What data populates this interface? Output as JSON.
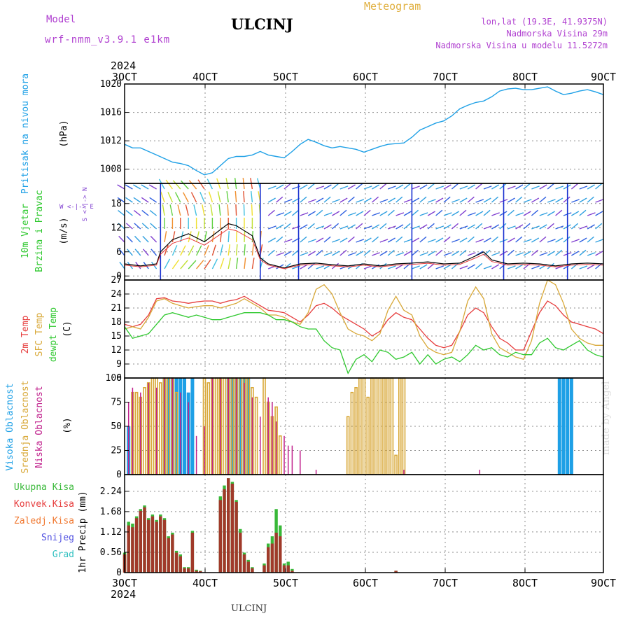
{
  "header": {
    "model_label": "Model",
    "model_name": "wrf-nmm_v3.9.1 e1km",
    "station": "ULCINJ",
    "product": "Meteogram",
    "lonlat": "lon,lat (19.3E, 41.9375N)",
    "elevation": "Nadmorska Visina 29m",
    "model_elevation": "Nadmorska Visina u modelu 11.5272m",
    "credit": "made by Angel",
    "footer_station": "ULCINJ"
  },
  "colors": {
    "pressure": "#1ea0e6",
    "temp2m": "#e63c3c",
    "sfctemp": "#d8a838",
    "dewpt": "#2ec82e",
    "cloud_high": "#1ea0e6",
    "cloud_mid": "#d8a838",
    "cloud_low": "#c0208c",
    "precip_total": "#38b838",
    "precip_conv": "#a03a2a",
    "grid": "#8c8c8c",
    "wind_purple": "#8040d0"
  },
  "time_axis": {
    "year": "2024",
    "ticks": [
      "3OCT",
      "4OCT",
      "5OCT",
      "6OCT",
      "7OCT",
      "8OCT",
      "9OCT"
    ]
  },
  "panels": {
    "pressure": {
      "label": "Pritisak na nivou mora",
      "unit": "(hPa)"
    },
    "wind": {
      "label1": "10m Vjetar",
      "label2": "Brzina i Pravac",
      "unit": "(m/s)",
      "compass": "W <-|-> E",
      "compass_ns": "S <-|-> N"
    },
    "temp": {
      "label1": "2m Temp",
      "label2": "SFC Temp",
      "label3": "dewpt Temp",
      "unit": "(C)"
    },
    "cloud": {
      "label1": "Visoka Oblacnost",
      "label2": "Srednja Oblacnost",
      "label3": "Niska Oblacnost",
      "unit": "(%)"
    },
    "precip": {
      "legend": [
        "Ukupna Kisa",
        "Konvek.Kisa",
        "Zaledj.Kisa",
        "Snijeg",
        "Grad"
      ],
      "legend_colors": [
        "#38b838",
        "#e63c3c",
        "#f07830",
        "#5050e0",
        "#30c0c0"
      ],
      "unit": "1hr Precip (mm)"
    }
  },
  "chart_data": [
    {
      "type": "line",
      "panel": "pressure",
      "xlabel": "",
      "ylabel": "Pritisak na nivou mora (hPa)",
      "ylim": [
        1006,
        1020
      ],
      "yticks": [
        "1008",
        "1012",
        "1016",
        "1020"
      ],
      "x": [
        3.0,
        3.1,
        3.2,
        3.3,
        3.4,
        3.5,
        3.6,
        3.7,
        3.8,
        3.9,
        4.0,
        4.1,
        4.2,
        4.3,
        4.4,
        4.5,
        4.6,
        4.7,
        4.8,
        4.9,
        5.0,
        5.1,
        5.2,
        5.3,
        5.4,
        5.5,
        5.6,
        5.7,
        5.8,
        5.9,
        6.0,
        6.1,
        6.2,
        6.3,
        6.4,
        6.5,
        6.6,
        6.7,
        6.8,
        6.9,
        7.0,
        7.1,
        7.2,
        7.3,
        7.4,
        7.5,
        7.6,
        7.7,
        7.8,
        7.9,
        8.0,
        8.1,
        8.2,
        8.3,
        8.4,
        8.5,
        8.6,
        8.7,
        8.8,
        8.9,
        9.0
      ],
      "series": [
        {
          "name": "",
          "values": [
            1011.5,
            1011.0,
            1011.0,
            1010.5,
            1010.0,
            1009.5,
            1009.0,
            1008.8,
            1008.5,
            1007.8,
            1007.2,
            1007.5,
            1008.5,
            1009.5,
            1009.8,
            1009.8,
            1010.0,
            1010.5,
            1010.0,
            1009.8,
            1009.6,
            1010.5,
            1011.5,
            1012.2,
            1011.8,
            1011.3,
            1011.0,
            1011.2,
            1011.0,
            1010.8,
            1010.4,
            1010.8,
            1011.2,
            1011.5,
            1011.6,
            1011.7,
            1012.5,
            1013.5,
            1014.0,
            1014.5,
            1014.8,
            1015.5,
            1016.5,
            1017.0,
            1017.4,
            1017.6,
            1018.2,
            1019.0,
            1019.3,
            1019.4,
            1019.2,
            1019.2,
            1019.4,
            1019.6,
            1019.0,
            1018.5,
            1018.7,
            1019.0,
            1019.2,
            1018.9,
            1018.5
          ]
        }
      ]
    },
    {
      "type": "line",
      "panel": "wind",
      "xlabel": "",
      "ylabel": "10m Vjetar Brzina i Pravac (m/s)",
      "ylim": [
        -1,
        23
      ],
      "yticks": [
        "0",
        "6",
        "12",
        "18"
      ],
      "x": [
        3.0,
        3.2,
        3.4,
        3.45,
        3.6,
        3.8,
        4.0,
        4.2,
        4.3,
        4.4,
        4.6,
        4.7,
        4.8,
        5.0,
        5.2,
        5.4,
        5.6,
        5.8,
        6.0,
        6.2,
        6.4,
        6.6,
        6.8,
        7.0,
        7.2,
        7.4,
        7.5,
        7.6,
        7.8,
        8.0,
        8.2,
        8.4,
        8.6,
        8.8,
        9.0
      ],
      "series": [
        {
          "name": "",
          "values": [
            3.0,
            2.5,
            3.0,
            6.0,
            9.0,
            10.5,
            8.5,
            11.5,
            13.0,
            12.5,
            10.0,
            4.5,
            3.0,
            2.0,
            3.0,
            3.2,
            2.8,
            2.5,
            3.0,
            2.5,
            3.0,
            3.2,
            3.5,
            3.0,
            3.2,
            5.0,
            6.0,
            4.0,
            3.0,
            3.2,
            3.0,
            2.5,
            3.0,
            3.2,
            3.0
          ]
        }
      ]
    },
    {
      "type": "line",
      "panel": "temperature",
      "xlabel": "",
      "ylabel": "(C)",
      "ylim": [
        6,
        27
      ],
      "yticks": [
        "6",
        "9",
        "12",
        "15",
        "18",
        "21",
        "24",
        "27"
      ],
      "x": [
        3.0,
        3.1,
        3.2,
        3.3,
        3.4,
        3.5,
        3.6,
        3.7,
        3.8,
        3.9,
        4.0,
        4.1,
        4.2,
        4.3,
        4.4,
        4.5,
        4.6,
        4.7,
        4.8,
        4.9,
        5.0,
        5.1,
        5.2,
        5.3,
        5.4,
        5.5,
        5.6,
        5.7,
        5.8,
        5.9,
        6.0,
        6.1,
        6.2,
        6.3,
        6.4,
        6.5,
        6.6,
        6.7,
        6.8,
        6.9,
        7.0,
        7.1,
        7.2,
        7.3,
        7.4,
        7.5,
        7.6,
        7.7,
        7.8,
        7.9,
        8.0,
        8.1,
        8.2,
        8.3,
        8.4,
        8.5,
        8.6,
        8.7,
        8.8,
        8.9,
        9.0
      ],
      "series": [
        {
          "name": "2m Temp",
          "values": [
            17.5,
            17.0,
            17.5,
            19.5,
            23.0,
            23.2,
            22.5,
            22.3,
            22.0,
            22.3,
            22.5,
            22.5,
            22.0,
            22.5,
            22.8,
            23.5,
            22.5,
            21.5,
            20.5,
            20.3,
            20.0,
            19.0,
            18.0,
            19.5,
            21.5,
            22.0,
            21.0,
            19.5,
            18.5,
            17.5,
            16.5,
            15.0,
            16.0,
            18.5,
            20.0,
            19.0,
            18.5,
            16.5,
            14.5,
            13.0,
            12.5,
            13.0,
            16.0,
            19.5,
            21.0,
            20.0,
            17.0,
            14.5,
            13.5,
            12.0,
            12.0,
            16.0,
            20.0,
            22.5,
            21.5,
            19.5,
            18.0,
            17.5,
            17.0,
            16.5,
            15.5
          ]
        },
        {
          "name": "SFC Temp",
          "values": [
            16.5,
            17.0,
            16.5,
            19.0,
            22.5,
            23.0,
            22.0,
            21.5,
            21.0,
            21.3,
            21.5,
            21.5,
            21.0,
            21.5,
            22.0,
            23.0,
            22.0,
            21.0,
            19.5,
            19.5,
            19.0,
            18.0,
            17.5,
            20.0,
            25.0,
            26.0,
            24.0,
            20.0,
            16.5,
            15.5,
            15.0,
            14.0,
            15.5,
            20.5,
            23.5,
            20.5,
            19.5,
            15.0,
            12.5,
            11.5,
            11.0,
            11.5,
            16.0,
            22.5,
            25.5,
            23.0,
            15.5,
            12.5,
            11.5,
            10.5,
            10.0,
            14.0,
            22.0,
            27.0,
            26.0,
            22.0,
            16.5,
            14.5,
            13.5,
            13.0,
            13.0
          ]
        },
        {
          "name": "dewpt Temp",
          "values": [
            17.0,
            14.5,
            15.0,
            15.5,
            17.5,
            19.5,
            20.0,
            19.5,
            19.0,
            19.5,
            19.0,
            18.5,
            18.5,
            19.0,
            19.5,
            20.0,
            20.0,
            20.0,
            19.5,
            18.5,
            18.5,
            18.0,
            17.0,
            16.5,
            16.5,
            14.0,
            12.5,
            12.0,
            7.0,
            10.0,
            11.0,
            9.5,
            12.0,
            11.5,
            10.0,
            10.5,
            11.5,
            9.0,
            11.0,
            9.0,
            10.0,
            10.5,
            9.5,
            11.0,
            13.0,
            12.0,
            12.5,
            11.0,
            10.5,
            11.5,
            11.0,
            11.0,
            13.5,
            14.5,
            12.5,
            12.0,
            13.0,
            14.0,
            12.0,
            11.0,
            10.5
          ]
        }
      ]
    },
    {
      "type": "bar",
      "panel": "cloud",
      "xlabel": "",
      "ylabel": "(%)",
      "ylim": [
        0,
        100
      ],
      "yticks": [
        "0",
        "25",
        "50",
        "75",
        "100"
      ],
      "series": [
        {
          "name": "Visoka Oblacnost",
          "x": [
            3.05,
            3.5,
            3.55,
            3.6,
            3.65,
            3.7,
            3.75,
            3.8,
            3.85,
            4.3,
            4.35,
            4.4,
            4.45,
            4.5,
            4.55,
            8.45,
            8.5,
            8.55,
            8.6
          ],
          "values": [
            50,
            100,
            100,
            100,
            100,
            100,
            100,
            85,
            100,
            100,
            100,
            100,
            100,
            100,
            100,
            100,
            100,
            100,
            100
          ]
        },
        {
          "name": "Srednja Oblacnost",
          "x": [
            3.1,
            3.15,
            3.2,
            3.25,
            3.3,
            3.35,
            3.4,
            3.45,
            3.5,
            3.55,
            3.6,
            3.65,
            4.0,
            4.05,
            4.1,
            4.15,
            4.2,
            4.25,
            4.3,
            4.35,
            4.4,
            4.45,
            4.5,
            4.55,
            4.6,
            4.65,
            4.75,
            4.8,
            4.85,
            4.9,
            4.95,
            5.8,
            5.85,
            5.9,
            5.95,
            6.0,
            6.05,
            6.1,
            6.15,
            6.2,
            6.25,
            6.3,
            6.35,
            6.4,
            6.45,
            6.5
          ],
          "values": [
            85,
            85,
            80,
            90,
            95,
            100,
            100,
            95,
            100,
            100,
            100,
            85,
            100,
            95,
            100,
            100,
            100,
            100,
            100,
            100,
            100,
            100,
            100,
            100,
            90,
            80,
            100,
            75,
            60,
            70,
            40,
            60,
            85,
            90,
            100,
            100,
            80,
            100,
            100,
            100,
            100,
            100,
            100,
            20,
            100,
            100
          ]
        },
        {
          "name": "Niska Oblacnost",
          "x": [
            3.05,
            3.1,
            3.2,
            3.3,
            3.4,
            3.5,
            3.6,
            3.7,
            3.8,
            3.9,
            4.0,
            4.1,
            4.2,
            4.3,
            4.4,
            4.5,
            4.6,
            4.7,
            4.8,
            4.85,
            4.9,
            5.0,
            5.05,
            5.1,
            5.2,
            5.4,
            6.5,
            7.45
          ],
          "values": [
            75,
            90,
            85,
            95,
            90,
            100,
            100,
            85,
            75,
            40,
            50,
            100,
            100,
            100,
            100,
            95,
            80,
            60,
            80,
            75,
            55,
            40,
            30,
            30,
            25,
            5,
            5,
            5
          ]
        }
      ]
    },
    {
      "type": "bar",
      "panel": "precip",
      "xlabel": "",
      "ylabel": "1hr Precip (mm)",
      "ylim": [
        0,
        2.7
      ],
      "yticks": [
        "0",
        "0.56",
        "1.12",
        "1.68",
        "2.24"
      ],
      "series": [
        {
          "name": "Ukupna Kisa",
          "x": [
            3.0,
            3.05,
            3.1,
            3.15,
            3.2,
            3.25,
            3.3,
            3.35,
            3.4,
            3.45,
            3.5,
            3.55,
            3.6,
            3.65,
            3.7,
            3.75,
            3.8,
            3.85,
            3.9,
            3.95,
            4.2,
            4.25,
            4.3,
            4.35,
            4.4,
            4.45,
            4.5,
            4.55,
            4.6,
            4.75,
            4.8,
            4.85,
            4.9,
            4.95,
            5.0,
            5.05,
            5.1,
            6.4
          ],
          "values": [
            0.55,
            1.4,
            1.35,
            1.55,
            1.75,
            1.85,
            1.5,
            1.6,
            1.45,
            1.6,
            1.5,
            1.0,
            1.1,
            0.6,
            0.5,
            0.15,
            0.15,
            1.15,
            0.08,
            0.05,
            2.1,
            2.4,
            2.6,
            2.5,
            2.0,
            1.2,
            0.55,
            0.35,
            0.15,
            0.25,
            0.8,
            1.0,
            1.75,
            1.3,
            0.25,
            0.3,
            0.1,
            0.05
          ]
        },
        {
          "name": "Konvek.Kisa",
          "x": [
            3.0,
            3.05,
            3.1,
            3.15,
            3.2,
            3.25,
            3.3,
            3.35,
            3.4,
            3.45,
            3.5,
            3.55,
            3.6,
            3.65,
            3.7,
            3.75,
            3.8,
            3.85,
            3.9,
            3.95,
            4.2,
            4.25,
            4.3,
            4.35,
            4.4,
            4.45,
            4.5,
            4.55,
            4.6,
            4.75,
            4.8,
            4.85,
            4.9,
            4.95,
            5.0,
            5.05,
            5.1,
            6.4
          ],
          "values": [
            0.5,
            1.3,
            1.25,
            1.5,
            1.7,
            1.8,
            1.45,
            1.55,
            1.4,
            1.55,
            1.45,
            0.95,
            1.05,
            0.55,
            0.45,
            0.12,
            0.12,
            1.1,
            0.05,
            0.04,
            2.0,
            2.3,
            2.6,
            2.45,
            1.95,
            1.1,
            0.5,
            0.3,
            0.12,
            0.2,
            0.7,
            0.8,
            1.1,
            1.0,
            0.2,
            0.2,
            0.05,
            0.05
          ]
        }
      ]
    }
  ]
}
